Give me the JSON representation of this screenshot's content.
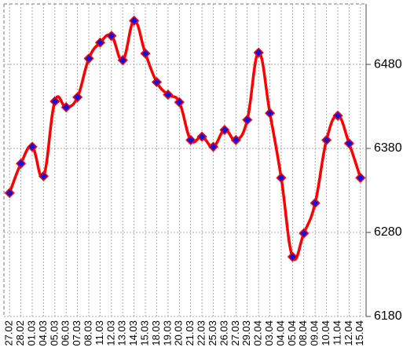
{
  "chart_data": {
    "type": "line",
    "categories": [
      "27.02",
      "28.02",
      "01.03",
      "04.03",
      "05.03",
      "06.03",
      "07.03",
      "08.03",
      "11.03",
      "12.03",
      "13.03",
      "14.03",
      "15.03",
      "18.03",
      "19.03",
      "20.03",
      "21.03",
      "22.03",
      "25.03",
      "26.03",
      "27.03",
      "29.03",
      "02.04",
      "03.04",
      "04.04",
      "05.04",
      "08.04",
      "09.04",
      "10.04",
      "11.04",
      "12.04",
      "15.04"
    ],
    "series": [
      {
        "color": "#ff0000",
        "marker_color": "#1010e0",
        "values": [
          6327,
          6362,
          6382,
          6347,
          6436,
          6429,
          6441,
          6487,
          6506,
          6514,
          6485,
          6532,
          6493,
          6459,
          6444,
          6435,
          6390,
          6394,
          6382,
          6402,
          6390,
          6414,
          6494,
          6422,
          6345,
          6251,
          6279,
          6315,
          6390,
          6419,
          6386,
          6345
        ]
      }
    ],
    "ylim": [
      6180,
      6552
    ],
    "yticks": [
      6180,
      6280,
      6380,
      6480
    ],
    "y_axis_side": "right",
    "grid": true
  }
}
